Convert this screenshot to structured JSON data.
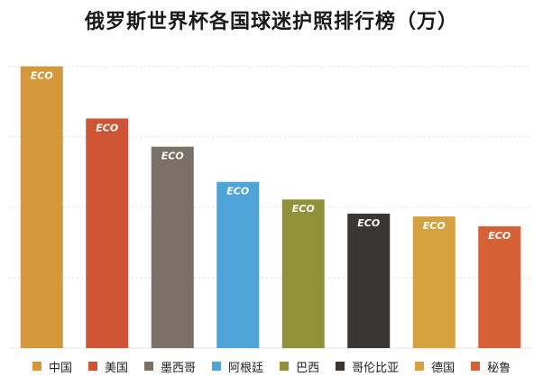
{
  "chart_data": {
    "type": "bar",
    "title": "俄罗斯世界杯各国球迷护照排行榜（万）",
    "categories": [
      "中国",
      "美国",
      "墨西哥",
      "阿根廷",
      "巴西",
      "哥伦比亚",
      "德国",
      "秘鲁"
    ],
    "values": [
      4.0,
      3.26,
      2.86,
      2.36,
      2.11,
      1.91,
      1.87,
      1.73
    ],
    "colors": [
      "#d4973a",
      "#cf5434",
      "#7a7067",
      "#4ea3d8",
      "#909238",
      "#3a3633",
      "#d6a23f",
      "#d66136"
    ],
    "bar_label": "ECO",
    "ylim": [
      0,
      4.2
    ],
    "grid": true,
    "legend_position": "bottom"
  }
}
